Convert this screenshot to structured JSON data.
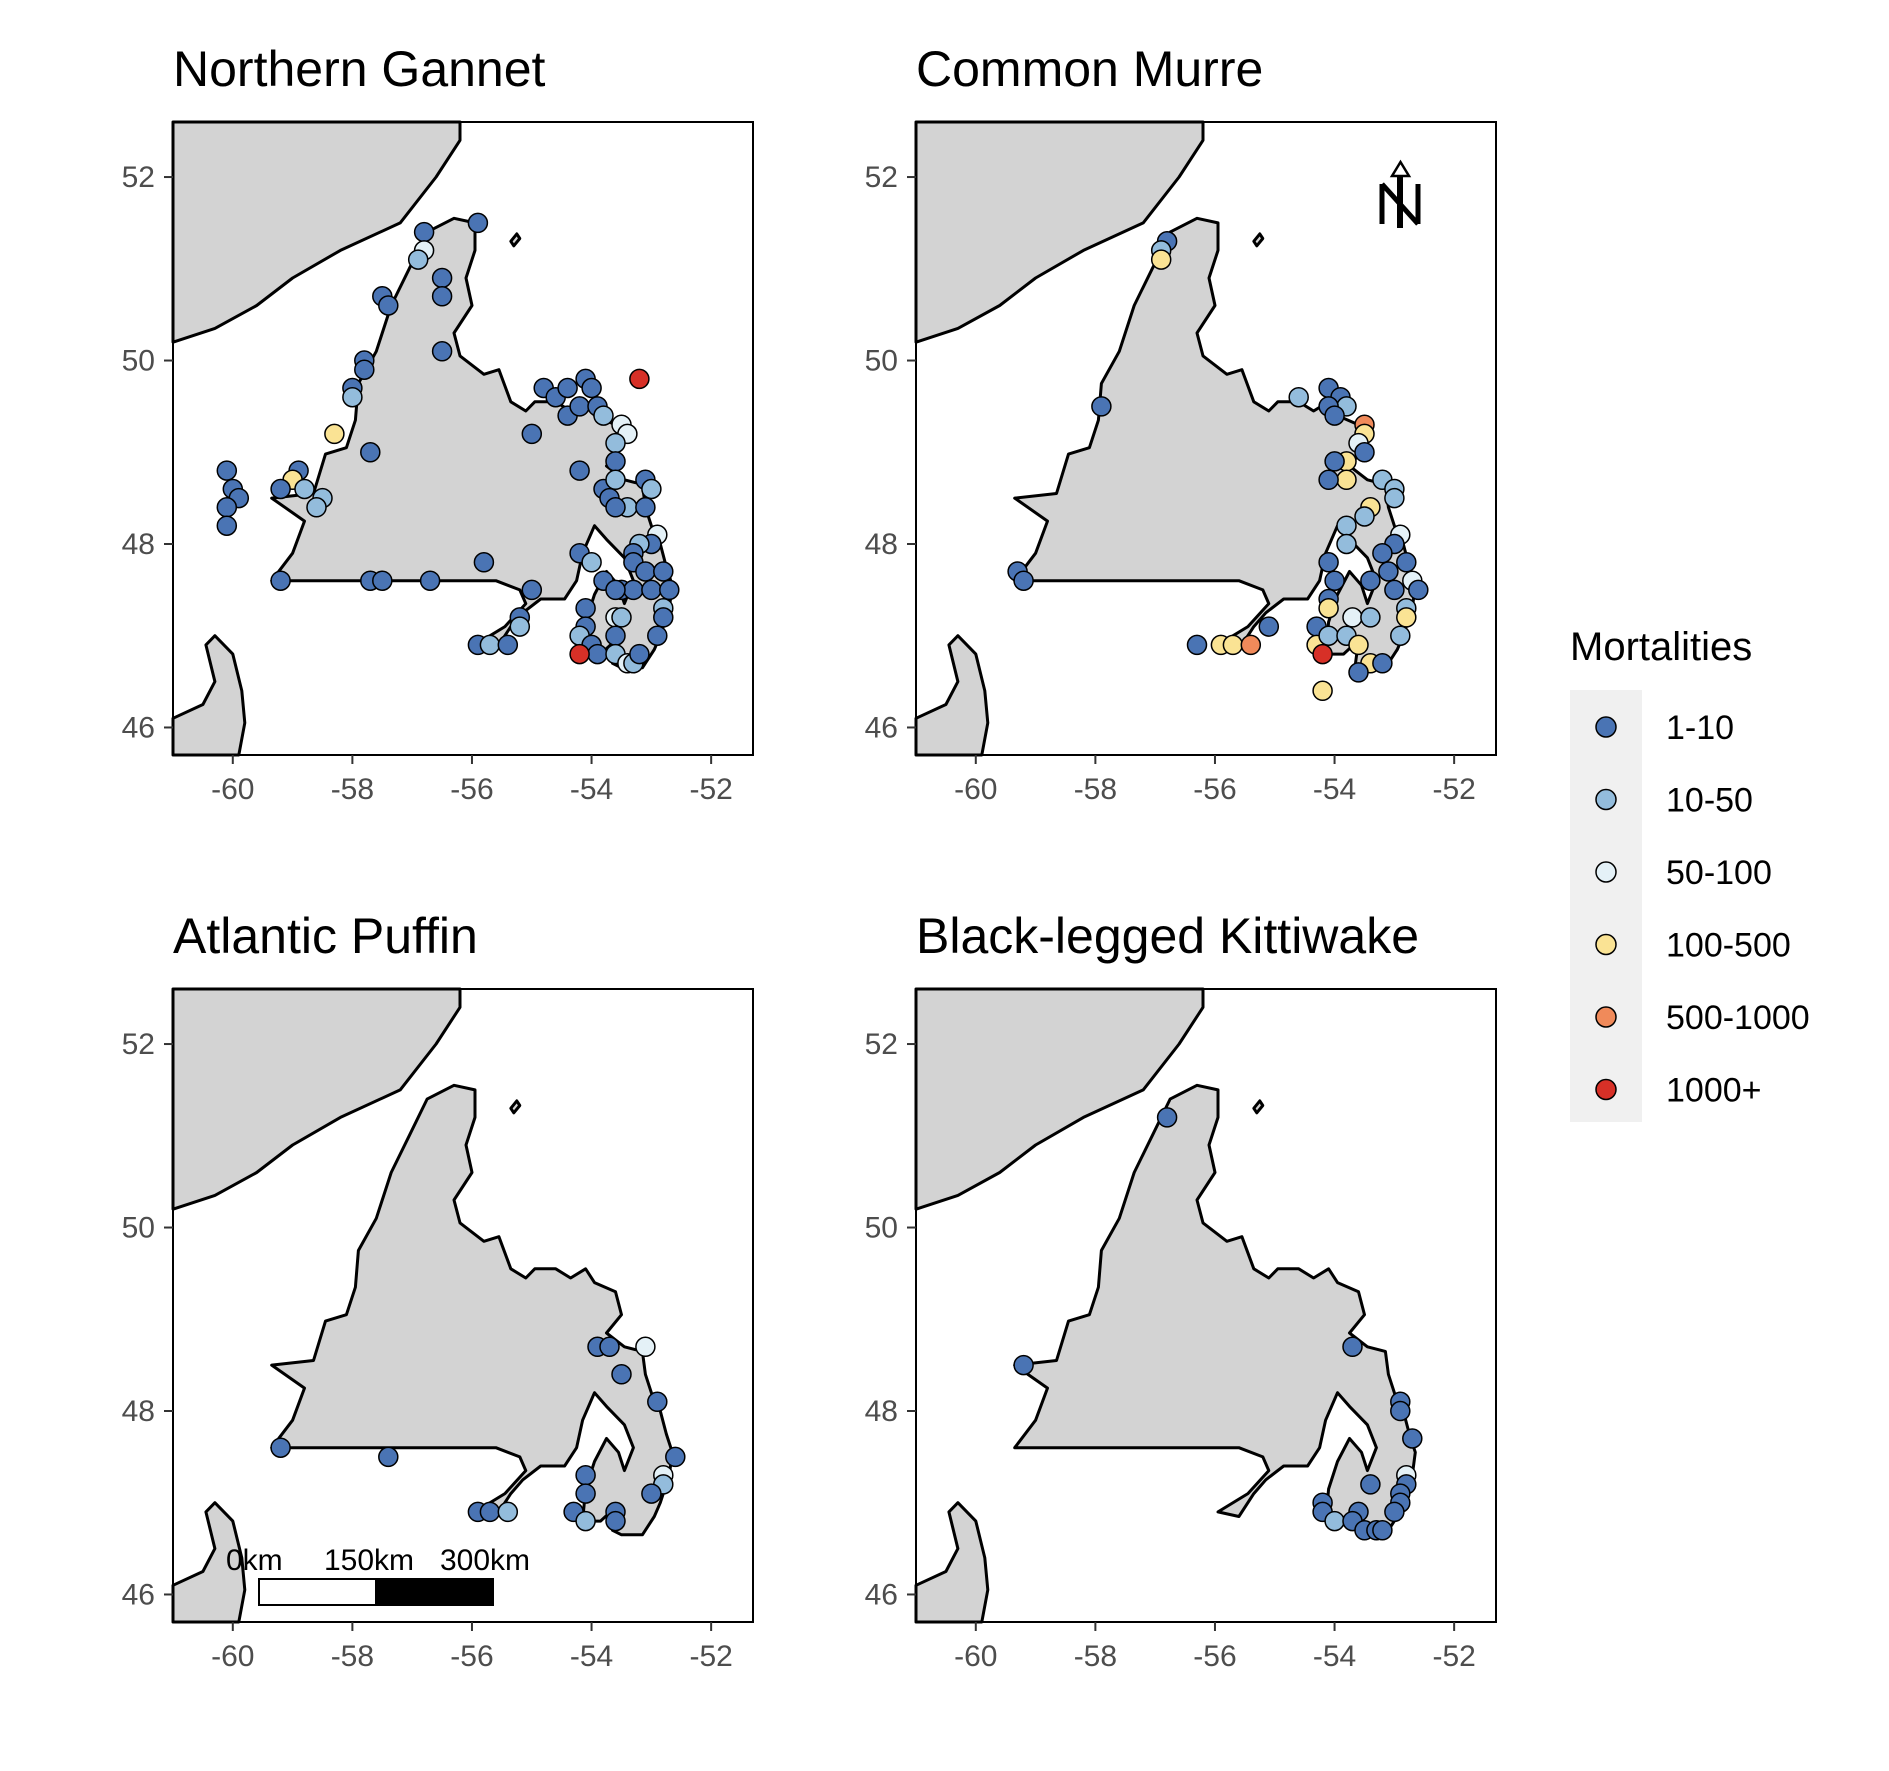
{
  "colors": {
    "land": "#d3d3d3",
    "ocean": "#ffffff",
    "outline": "#000000",
    "legend_bg": "#f0f0f0",
    "bins": {
      "1-10": "#4a74b4",
      "10-50": "#93bcdc",
      "50-100": "#e4f1f7",
      "100-500": "#fae394",
      "500-1000": "#f08a5a",
      "1000+": "#d73027"
    }
  },
  "legend": {
    "title": "Mortalities",
    "items": [
      {
        "label": "1-10",
        "key": "1-10"
      },
      {
        "label": "10-50",
        "key": "10-50"
      },
      {
        "label": "50-100",
        "key": "50-100"
      },
      {
        "label": "100-500",
        "key": "100-500"
      },
      {
        "label": "500-1000",
        "key": "500-1000"
      },
      {
        "label": "1000+",
        "key": "1000+"
      }
    ]
  },
  "north_arrow_icon": "north-arrow-icon",
  "scale_bar": {
    "labels": [
      "0km",
      "150km",
      "300km"
    ]
  },
  "chart_data": [
    {
      "type": "scatter",
      "title": "Northern Gannet",
      "xlim": [
        -61,
        -51.3
      ],
      "ylim": [
        45.7,
        52.6
      ],
      "x_ticks": [
        -60,
        -58,
        -56,
        -54,
        -52
      ],
      "y_ticks": [
        46,
        48,
        50,
        52
      ],
      "points": [
        {
          "x": -56.5,
          "y": 50.9,
          "bin": "1-10"
        },
        {
          "x": -56.5,
          "y": 50.7,
          "bin": "1-10"
        },
        {
          "x": -56.5,
          "y": 50.1,
          "bin": "1-10"
        },
        {
          "x": -56.8,
          "y": 51.4,
          "bin": "1-10"
        },
        {
          "x": -56.8,
          "y": 51.2,
          "bin": "50-100"
        },
        {
          "x": -56.9,
          "y": 51.1,
          "bin": "10-50"
        },
        {
          "x": -55.9,
          "y": 51.5,
          "bin": "1-10"
        },
        {
          "x": -57.5,
          "y": 50.7,
          "bin": "1-10"
        },
        {
          "x": -57.4,
          "y": 50.6,
          "bin": "1-10"
        },
        {
          "x": -57.8,
          "y": 50.0,
          "bin": "1-10"
        },
        {
          "x": -57.8,
          "y": 49.9,
          "bin": "1-10"
        },
        {
          "x": -58.0,
          "y": 49.7,
          "bin": "1-10"
        },
        {
          "x": -58.0,
          "y": 49.6,
          "bin": "10-50"
        },
        {
          "x": -58.3,
          "y": 49.2,
          "bin": "100-500"
        },
        {
          "x": -57.7,
          "y": 49.0,
          "bin": "1-10"
        },
        {
          "x": -58.9,
          "y": 48.8,
          "bin": "1-10"
        },
        {
          "x": -59.0,
          "y": 48.7,
          "bin": "100-500"
        },
        {
          "x": -58.8,
          "y": 48.6,
          "bin": "10-50"
        },
        {
          "x": -59.2,
          "y": 48.6,
          "bin": "1-10"
        },
        {
          "x": -58.5,
          "y": 48.5,
          "bin": "10-50"
        },
        {
          "x": -58.6,
          "y": 48.4,
          "bin": "10-50"
        },
        {
          "x": -60.1,
          "y": 48.8,
          "bin": "1-10"
        },
        {
          "x": -60.0,
          "y": 48.6,
          "bin": "1-10"
        },
        {
          "x": -59.9,
          "y": 48.5,
          "bin": "1-10"
        },
        {
          "x": -60.1,
          "y": 48.4,
          "bin": "1-10"
        },
        {
          "x": -60.1,
          "y": 48.2,
          "bin": "1-10"
        },
        {
          "x": -59.2,
          "y": 47.6,
          "bin": "1-10"
        },
        {
          "x": -57.7,
          "y": 47.6,
          "bin": "1-10"
        },
        {
          "x": -57.5,
          "y": 47.6,
          "bin": "1-10"
        },
        {
          "x": -56.7,
          "y": 47.6,
          "bin": "1-10"
        },
        {
          "x": -55.8,
          "y": 47.8,
          "bin": "1-10"
        },
        {
          "x": -55.0,
          "y": 47.5,
          "bin": "1-10"
        },
        {
          "x": -55.2,
          "y": 47.2,
          "bin": "1-10"
        },
        {
          "x": -55.2,
          "y": 47.1,
          "bin": "10-50"
        },
        {
          "x": -55.9,
          "y": 46.9,
          "bin": "1-10"
        },
        {
          "x": -55.7,
          "y": 46.9,
          "bin": "10-50"
        },
        {
          "x": -55.4,
          "y": 46.9,
          "bin": "1-10"
        },
        {
          "x": -54.8,
          "y": 49.7,
          "bin": "1-10"
        },
        {
          "x": -54.6,
          "y": 49.6,
          "bin": "1-10"
        },
        {
          "x": -54.4,
          "y": 49.7,
          "bin": "1-10"
        },
        {
          "x": -54.1,
          "y": 49.8,
          "bin": "1-10"
        },
        {
          "x": -54.0,
          "y": 49.7,
          "bin": "1-10"
        },
        {
          "x": -54.4,
          "y": 49.4,
          "bin": "1-10"
        },
        {
          "x": -54.2,
          "y": 49.5,
          "bin": "1-10"
        },
        {
          "x": -53.9,
          "y": 49.5,
          "bin": "1-10"
        },
        {
          "x": -53.8,
          "y": 49.4,
          "bin": "10-50"
        },
        {
          "x": -53.5,
          "y": 49.3,
          "bin": "50-100"
        },
        {
          "x": -53.4,
          "y": 49.2,
          "bin": "50-100"
        },
        {
          "x": -53.6,
          "y": 49.1,
          "bin": "10-50"
        },
        {
          "x": -55.0,
          "y": 49.2,
          "bin": "1-10"
        },
        {
          "x": -53.2,
          "y": 49.8,
          "bin": "1000+"
        },
        {
          "x": -53.6,
          "y": 48.9,
          "bin": "1-10"
        },
        {
          "x": -54.2,
          "y": 48.8,
          "bin": "1-10"
        },
        {
          "x": -53.8,
          "y": 48.6,
          "bin": "1-10"
        },
        {
          "x": -53.6,
          "y": 48.7,
          "bin": "10-50"
        },
        {
          "x": -53.7,
          "y": 48.5,
          "bin": "1-10"
        },
        {
          "x": -53.4,
          "y": 48.4,
          "bin": "10-50"
        },
        {
          "x": -53.6,
          "y": 48.4,
          "bin": "1-10"
        },
        {
          "x": -53.1,
          "y": 48.7,
          "bin": "1-10"
        },
        {
          "x": -53.0,
          "y": 48.6,
          "bin": "10-50"
        },
        {
          "x": -53.1,
          "y": 48.4,
          "bin": "1-10"
        },
        {
          "x": -52.9,
          "y": 48.1,
          "bin": "50-100"
        },
        {
          "x": -53.0,
          "y": 48.0,
          "bin": "1-10"
        },
        {
          "x": -53.2,
          "y": 48.0,
          "bin": "10-50"
        },
        {
          "x": -53.3,
          "y": 47.9,
          "bin": "1-10"
        },
        {
          "x": -53.3,
          "y": 47.8,
          "bin": "1-10"
        },
        {
          "x": -53.1,
          "y": 47.7,
          "bin": "1-10"
        },
        {
          "x": -52.8,
          "y": 47.7,
          "bin": "1-10"
        },
        {
          "x": -53.5,
          "y": 47.5,
          "bin": "1-10"
        },
        {
          "x": -53.3,
          "y": 47.5,
          "bin": "1-10"
        },
        {
          "x": -53.0,
          "y": 47.5,
          "bin": "1-10"
        },
        {
          "x": -52.7,
          "y": 47.5,
          "bin": "1-10"
        },
        {
          "x": -52.8,
          "y": 47.3,
          "bin": "10-50"
        },
        {
          "x": -52.8,
          "y": 47.2,
          "bin": "1-10"
        },
        {
          "x": -52.9,
          "y": 47.0,
          "bin": "1-10"
        },
        {
          "x": -54.2,
          "y": 47.9,
          "bin": "1-10"
        },
        {
          "x": -54.0,
          "y": 47.8,
          "bin": "10-50"
        },
        {
          "x": -53.8,
          "y": 47.6,
          "bin": "1-10"
        },
        {
          "x": -53.6,
          "y": 47.5,
          "bin": "1-10"
        },
        {
          "x": -54.1,
          "y": 47.3,
          "bin": "1-10"
        },
        {
          "x": -54.1,
          "y": 47.1,
          "bin": "1-10"
        },
        {
          "x": -54.2,
          "y": 47.0,
          "bin": "10-50"
        },
        {
          "x": -54.0,
          "y": 46.9,
          "bin": "1-10"
        },
        {
          "x": -53.9,
          "y": 46.8,
          "bin": "1-10"
        },
        {
          "x": -53.6,
          "y": 47.2,
          "bin": "50-100"
        },
        {
          "x": -53.5,
          "y": 47.2,
          "bin": "10-50"
        },
        {
          "x": -53.6,
          "y": 47.0,
          "bin": "1-10"
        },
        {
          "x": -53.6,
          "y": 46.8,
          "bin": "10-50"
        },
        {
          "x": -53.4,
          "y": 46.7,
          "bin": "50-100"
        },
        {
          "x": -53.3,
          "y": 46.7,
          "bin": "10-50"
        },
        {
          "x": -53.2,
          "y": 46.8,
          "bin": "1-10"
        },
        {
          "x": -54.2,
          "y": 46.8,
          "bin": "1000+"
        }
      ]
    },
    {
      "type": "scatter",
      "title": "Common Murre",
      "xlim": [
        -61,
        -51.3
      ],
      "ylim": [
        45.7,
        52.6
      ],
      "x_ticks": [
        -60,
        -58,
        -56,
        -54,
        -52
      ],
      "y_ticks": [
        46,
        48,
        50,
        52
      ],
      "points": [
        {
          "x": -56.8,
          "y": 51.3,
          "bin": "1-10"
        },
        {
          "x": -56.9,
          "y": 51.2,
          "bin": "10-50"
        },
        {
          "x": -56.9,
          "y": 51.1,
          "bin": "100-500"
        },
        {
          "x": -57.9,
          "y": 49.5,
          "bin": "1-10"
        },
        {
          "x": -59.3,
          "y": 47.7,
          "bin": "1-10"
        },
        {
          "x": -59.2,
          "y": 47.6,
          "bin": "1-10"
        },
        {
          "x": -56.3,
          "y": 46.9,
          "bin": "1-10"
        },
        {
          "x": -55.9,
          "y": 46.9,
          "bin": "100-500"
        },
        {
          "x": -55.7,
          "y": 46.9,
          "bin": "100-500"
        },
        {
          "x": -55.4,
          "y": 46.9,
          "bin": "500-1000"
        },
        {
          "x": -55.1,
          "y": 47.1,
          "bin": "1-10"
        },
        {
          "x": -54.6,
          "y": 49.6,
          "bin": "10-50"
        },
        {
          "x": -54.1,
          "y": 49.7,
          "bin": "1-10"
        },
        {
          "x": -53.9,
          "y": 49.6,
          "bin": "1-10"
        },
        {
          "x": -53.8,
          "y": 49.5,
          "bin": "10-50"
        },
        {
          "x": -54.1,
          "y": 49.5,
          "bin": "1-10"
        },
        {
          "x": -54.0,
          "y": 49.4,
          "bin": "1-10"
        },
        {
          "x": -53.5,
          "y": 49.3,
          "bin": "500-1000"
        },
        {
          "x": -53.5,
          "y": 49.2,
          "bin": "100-500"
        },
        {
          "x": -53.6,
          "y": 49.1,
          "bin": "50-100"
        },
        {
          "x": -53.5,
          "y": 49.0,
          "bin": "1-10"
        },
        {
          "x": -53.8,
          "y": 48.9,
          "bin": "100-500"
        },
        {
          "x": -54.0,
          "y": 48.9,
          "bin": "1-10"
        },
        {
          "x": -53.8,
          "y": 48.7,
          "bin": "100-500"
        },
        {
          "x": -54.1,
          "y": 48.7,
          "bin": "1-10"
        },
        {
          "x": -53.2,
          "y": 48.7,
          "bin": "10-50"
        },
        {
          "x": -53.0,
          "y": 48.6,
          "bin": "10-50"
        },
        {
          "x": -53.0,
          "y": 48.5,
          "bin": "10-50"
        },
        {
          "x": -53.4,
          "y": 48.4,
          "bin": "100-500"
        },
        {
          "x": -53.5,
          "y": 48.3,
          "bin": "10-50"
        },
        {
          "x": -53.8,
          "y": 48.2,
          "bin": "10-50"
        },
        {
          "x": -53.8,
          "y": 48.0,
          "bin": "10-50"
        },
        {
          "x": -52.9,
          "y": 48.1,
          "bin": "50-100"
        },
        {
          "x": -53.0,
          "y": 48.0,
          "bin": "1-10"
        },
        {
          "x": -53.2,
          "y": 47.9,
          "bin": "1-10"
        },
        {
          "x": -52.8,
          "y": 47.8,
          "bin": "1-10"
        },
        {
          "x": -53.1,
          "y": 47.7,
          "bin": "1-10"
        },
        {
          "x": -52.7,
          "y": 47.6,
          "bin": "50-100"
        },
        {
          "x": -52.6,
          "y": 47.5,
          "bin": "1-10"
        },
        {
          "x": -53.0,
          "y": 47.5,
          "bin": "1-10"
        },
        {
          "x": -53.4,
          "y": 47.6,
          "bin": "1-10"
        },
        {
          "x": -52.8,
          "y": 47.3,
          "bin": "10-50"
        },
        {
          "x": -52.8,
          "y": 47.2,
          "bin": "100-500"
        },
        {
          "x": -52.9,
          "y": 47.0,
          "bin": "10-50"
        },
        {
          "x": -54.1,
          "y": 47.8,
          "bin": "1-10"
        },
        {
          "x": -54.0,
          "y": 47.6,
          "bin": "1-10"
        },
        {
          "x": -54.1,
          "y": 47.4,
          "bin": "1-10"
        },
        {
          "x": -54.1,
          "y": 47.3,
          "bin": "100-500"
        },
        {
          "x": -53.7,
          "y": 47.2,
          "bin": "50-100"
        },
        {
          "x": -53.4,
          "y": 47.2,
          "bin": "10-50"
        },
        {
          "x": -54.3,
          "y": 47.1,
          "bin": "1-10"
        },
        {
          "x": -54.3,
          "y": 46.9,
          "bin": "100-500"
        },
        {
          "x": -54.2,
          "y": 46.8,
          "bin": "1000+"
        },
        {
          "x": -54.1,
          "y": 47.0,
          "bin": "10-50"
        },
        {
          "x": -53.8,
          "y": 47.0,
          "bin": "10-50"
        },
        {
          "x": -53.6,
          "y": 46.9,
          "bin": "100-500"
        },
        {
          "x": -53.4,
          "y": 46.7,
          "bin": "100-500"
        },
        {
          "x": -53.2,
          "y": 46.7,
          "bin": "1-10"
        },
        {
          "x": -53.6,
          "y": 46.6,
          "bin": "1-10"
        },
        {
          "x": -54.2,
          "y": 46.4,
          "bin": "100-500"
        }
      ]
    },
    {
      "type": "scatter",
      "title": "Atlantic Puffin",
      "xlim": [
        -61,
        -51.3
      ],
      "ylim": [
        45.7,
        52.6
      ],
      "x_ticks": [
        -60,
        -58,
        -56,
        -54,
        -52
      ],
      "y_ticks": [
        46,
        48,
        50,
        52
      ],
      "points": [
        {
          "x": -53.9,
          "y": 48.7,
          "bin": "1-10"
        },
        {
          "x": -53.7,
          "y": 48.7,
          "bin": "1-10"
        },
        {
          "x": -53.1,
          "y": 48.7,
          "bin": "50-100"
        },
        {
          "x": -53.5,
          "y": 48.4,
          "bin": "1-10"
        },
        {
          "x": -52.9,
          "y": 48.1,
          "bin": "1-10"
        },
        {
          "x": -52.6,
          "y": 47.5,
          "bin": "1-10"
        },
        {
          "x": -52.8,
          "y": 47.3,
          "bin": "50-100"
        },
        {
          "x": -52.8,
          "y": 47.2,
          "bin": "10-50"
        },
        {
          "x": -53.0,
          "y": 47.1,
          "bin": "1-10"
        },
        {
          "x": -54.1,
          "y": 47.3,
          "bin": "1-10"
        },
        {
          "x": -54.1,
          "y": 47.1,
          "bin": "1-10"
        },
        {
          "x": -54.3,
          "y": 46.9,
          "bin": "1-10"
        },
        {
          "x": -54.1,
          "y": 46.8,
          "bin": "10-50"
        },
        {
          "x": -53.6,
          "y": 46.9,
          "bin": "1-10"
        },
        {
          "x": -53.6,
          "y": 46.8,
          "bin": "1-10"
        },
        {
          "x": -55.9,
          "y": 46.9,
          "bin": "1-10"
        },
        {
          "x": -55.7,
          "y": 46.9,
          "bin": "1-10"
        },
        {
          "x": -55.4,
          "y": 46.9,
          "bin": "10-50"
        },
        {
          "x": -57.4,
          "y": 47.5,
          "bin": "1-10"
        },
        {
          "x": -59.2,
          "y": 47.6,
          "bin": "1-10"
        }
      ]
    },
    {
      "type": "scatter",
      "title": "Black-legged Kittiwake",
      "xlim": [
        -61,
        -51.3
      ],
      "ylim": [
        45.7,
        52.6
      ],
      "x_ticks": [
        -60,
        -58,
        -56,
        -54,
        -52
      ],
      "y_ticks": [
        46,
        48,
        50,
        52
      ],
      "points": [
        {
          "x": -56.8,
          "y": 51.2,
          "bin": "1-10"
        },
        {
          "x": -59.2,
          "y": 48.5,
          "bin": "1-10"
        },
        {
          "x": -53.7,
          "y": 48.7,
          "bin": "1-10"
        },
        {
          "x": -52.9,
          "y": 48.1,
          "bin": "1-10"
        },
        {
          "x": -52.9,
          "y": 48.0,
          "bin": "1-10"
        },
        {
          "x": -52.7,
          "y": 47.7,
          "bin": "1-10"
        },
        {
          "x": -52.8,
          "y": 47.3,
          "bin": "50-100"
        },
        {
          "x": -52.8,
          "y": 47.2,
          "bin": "1-10"
        },
        {
          "x": -52.9,
          "y": 47.1,
          "bin": "1-10"
        },
        {
          "x": -52.9,
          "y": 47.0,
          "bin": "1-10"
        },
        {
          "x": -53.0,
          "y": 46.9,
          "bin": "1-10"
        },
        {
          "x": -53.4,
          "y": 47.2,
          "bin": "1-10"
        },
        {
          "x": -54.2,
          "y": 47.0,
          "bin": "1-10"
        },
        {
          "x": -54.2,
          "y": 46.9,
          "bin": "1-10"
        },
        {
          "x": -54.0,
          "y": 46.8,
          "bin": "10-50"
        },
        {
          "x": -53.6,
          "y": 46.9,
          "bin": "1-10"
        },
        {
          "x": -53.7,
          "y": 46.8,
          "bin": "1-10"
        },
        {
          "x": -53.5,
          "y": 46.7,
          "bin": "1-10"
        },
        {
          "x": -53.3,
          "y": 46.7,
          "bin": "1-10"
        },
        {
          "x": -53.2,
          "y": 46.7,
          "bin": "1-10"
        }
      ]
    }
  ]
}
